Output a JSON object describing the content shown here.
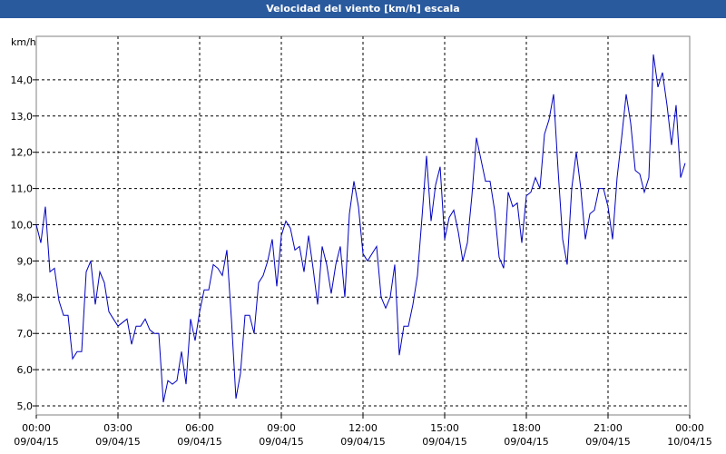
{
  "chart_data": {
    "type": "line",
    "title": "Velocidad del viento [km/h] escala",
    "y_label": "km/h",
    "x": [
      0,
      10,
      20,
      30,
      40,
      50,
      60,
      70,
      80,
      90,
      100,
      110,
      120,
      130,
      140,
      150,
      160,
      170,
      180,
      190,
      200,
      210,
      220,
      230,
      240,
      250,
      260,
      270,
      280,
      290,
      300,
      310,
      320,
      330,
      340,
      350,
      360,
      370,
      380,
      390,
      400,
      410,
      420,
      430,
      440,
      450,
      460,
      470,
      480,
      490,
      500,
      510,
      520,
      530,
      540,
      550,
      560,
      570,
      580,
      590,
      600,
      610,
      620,
      630,
      640,
      650,
      660,
      670,
      680,
      690,
      700,
      710,
      720,
      730,
      740,
      750,
      760,
      770,
      780,
      790,
      800,
      810,
      820,
      830,
      840,
      850,
      860,
      870,
      880,
      890,
      900,
      910,
      920,
      930,
      940,
      950,
      960,
      970,
      980,
      990,
      1000,
      1010,
      1020,
      1030,
      1040,
      1050,
      1060,
      1070,
      1080,
      1090,
      1100,
      1110,
      1120,
      1130,
      1140,
      1150,
      1160,
      1170,
      1180,
      1190,
      1200,
      1210,
      1220,
      1230,
      1240,
      1250,
      1260,
      1270,
      1280,
      1290,
      1300,
      1310,
      1320,
      1330,
      1340,
      1350,
      1360,
      1370,
      1380,
      1390,
      1400,
      1410,
      1420,
      1430
    ],
    "series": [
      {
        "name": "Velocidad del viento",
        "color": "#0000c0",
        "values": [
          10.0,
          9.5,
          10.5,
          8.7,
          8.8,
          7.9,
          7.5,
          7.5,
          6.3,
          6.5,
          6.5,
          8.7,
          9.0,
          7.8,
          8.7,
          8.4,
          7.6,
          7.4,
          7.2,
          7.3,
          7.4,
          6.7,
          7.2,
          7.2,
          7.4,
          7.1,
          7.0,
          7.0,
          5.1,
          5.7,
          5.6,
          5.7,
          6.5,
          5.6,
          7.4,
          6.8,
          7.6,
          8.2,
          8.2,
          8.9,
          8.8,
          8.6,
          9.3,
          7.4,
          5.2,
          5.9,
          7.5,
          7.5,
          7.0,
          8.4,
          8.6,
          9.0,
          9.6,
          8.3,
          9.7,
          10.1,
          9.9,
          9.3,
          9.4,
          8.7,
          9.7,
          8.8,
          7.8,
          9.4,
          8.9,
          8.1,
          8.9,
          9.4,
          8.0,
          10.3,
          11.2,
          10.5,
          9.2,
          9.0,
          9.2,
          9.4,
          8.0,
          7.7,
          8.0,
          8.9,
          6.4,
          7.2,
          7.2,
          7.8,
          8.6,
          10.2,
          11.9,
          10.1,
          11.1,
          11.6,
          9.6,
          10.2,
          10.4,
          9.8,
          9.0,
          9.5,
          10.8,
          12.4,
          11.8,
          11.2,
          11.2,
          10.4,
          9.1,
          8.8,
          10.9,
          10.5,
          10.6,
          9.5,
          10.8,
          10.9,
          11.3,
          11.0,
          12.5,
          12.9,
          13.6,
          11.5,
          9.6,
          8.9,
          11.0,
          12.0,
          11.0,
          9.6,
          10.3,
          10.4,
          11.0,
          11.0,
          10.5,
          9.6,
          11.3,
          12.4,
          13.6,
          12.8,
          11.5,
          11.4,
          10.9,
          11.3,
          14.7,
          13.8,
          14.2,
          13.3,
          12.2,
          13.3,
          11.3,
          11.7
        ]
      }
    ],
    "xlim": [
      0,
      1440
    ],
    "xticks": [
      {
        "value": 0,
        "label": "00:00\n09/04/15"
      },
      {
        "value": 180,
        "label": "03:00\n09/04/15"
      },
      {
        "value": 360,
        "label": "06:00\n09/04/15"
      },
      {
        "value": 540,
        "label": "09:00\n09/04/15"
      },
      {
        "value": 720,
        "label": "12:00\n09/04/15"
      },
      {
        "value": 900,
        "label": "15:00\n09/04/15"
      },
      {
        "value": 1080,
        "label": "18:00\n09/04/15"
      },
      {
        "value": 1260,
        "label": "21:00\n09/04/15"
      },
      {
        "value": 1440,
        "label": "00:00\n10/04/15"
      }
    ],
    "ylim": [
      4.75,
      15.2
    ],
    "yticks": [
      {
        "value": 5,
        "label": "5,0"
      },
      {
        "value": 6,
        "label": "6,0"
      },
      {
        "value": 7,
        "label": "7,0"
      },
      {
        "value": 8,
        "label": "8,0"
      },
      {
        "value": 9,
        "label": "9,0"
      },
      {
        "value": 10,
        "label": "10,0"
      },
      {
        "value": 11,
        "label": "11,0"
      },
      {
        "value": 12,
        "label": "12,0"
      },
      {
        "value": 13,
        "label": "13,0"
      },
      {
        "value": 14,
        "label": "14,0"
      }
    ],
    "grid": true
  }
}
